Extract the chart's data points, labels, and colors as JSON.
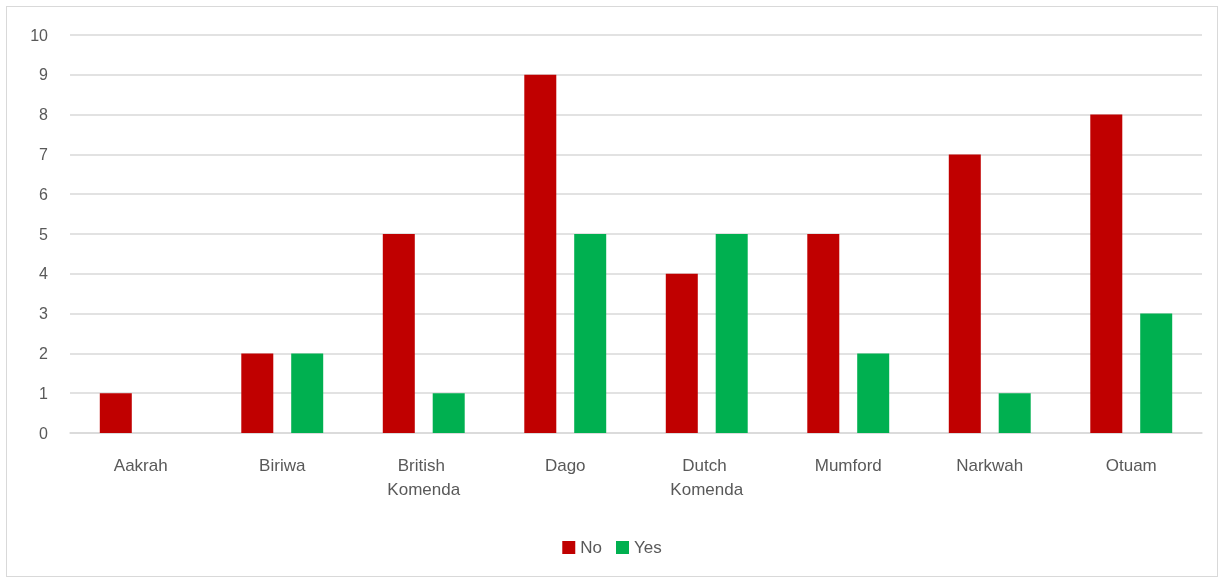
{
  "chart_data": {
    "type": "bar",
    "categories": [
      "Aakrah",
      "Biriwa",
      "British Komenda",
      "Dago",
      "Dutch Komenda",
      "Mumford",
      "Narkwah",
      "Otuam"
    ],
    "series": [
      {
        "name": "No",
        "color": "#c00000",
        "values": [
          1,
          2,
          5,
          9,
          4,
          5,
          7,
          8
        ]
      },
      {
        "name": "Yes",
        "color": "#00b050",
        "values": [
          0,
          2,
          1,
          5,
          5,
          2,
          1,
          3
        ]
      }
    ],
    "ylim": [
      0,
      10
    ],
    "yticks": [
      0,
      1,
      2,
      3,
      4,
      5,
      6,
      7,
      8,
      9,
      10
    ],
    "grid": "y",
    "legend": "bottom"
  }
}
